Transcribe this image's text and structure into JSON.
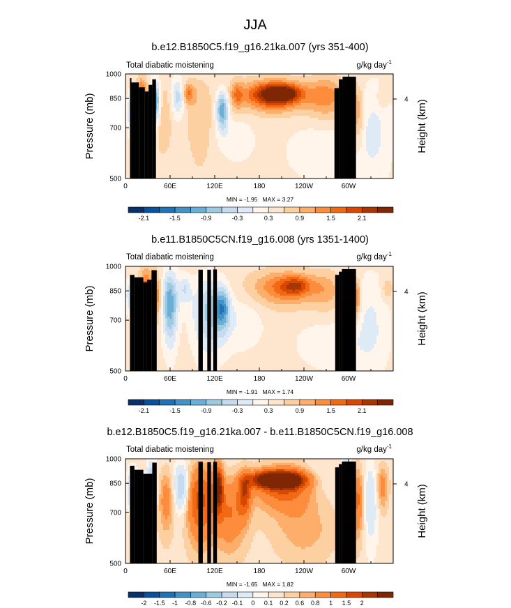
{
  "figure": {
    "title": "JJA",
    "colors": {
      "palette": [
        "#08306b",
        "#08519c",
        "#2171b5",
        "#4292c6",
        "#6baed6",
        "#9ecae1",
        "#c6dbef",
        "#deebf7",
        "#fff5eb",
        "#fee6ce",
        "#fdd0a2",
        "#fdae6b",
        "#fd8d3c",
        "#f16913",
        "#d94801",
        "#a63603",
        "#7f2704"
      ],
      "topography": "#000000"
    }
  },
  "chart_data": [
    {
      "type": "heatmap",
      "title": "b.e12.B1850C5.f19_g16.21ka.007 (yrs 351-400)",
      "left_string": "Total diabatic moistening",
      "units_base": "g/kg day",
      "units_exp": "-1",
      "ylabel": "Pressure (mb)",
      "ylabel_right": "Height (km)",
      "yticks": [
        "500",
        "700",
        "850",
        "1000"
      ],
      "yticks_right": [
        "4"
      ],
      "xticks": [
        "0",
        "60E",
        "120E",
        "180",
        "120W",
        "60W"
      ],
      "xlim": [
        0,
        360
      ],
      "ylim": [
        1000,
        500
      ],
      "min_label": "MIN = -1.95",
      "max_label": "MAX = 3.27",
      "min": -1.95,
      "max": 3.27,
      "levels": [
        -2.4,
        -2.1,
        -1.8,
        -1.5,
        -1.2,
        -0.9,
        -0.6,
        -0.3,
        0,
        0.3,
        0.6,
        0.9,
        1.2,
        1.5,
        1.8,
        2.1
      ],
      "colorbar_labels": [
        "-2.1",
        "-1.5",
        "-0.9",
        "-0.3",
        "0.3",
        "0.9",
        "1.5",
        "2.1"
      ],
      "background": 0.15,
      "blobs": [
        {
          "lon": 10,
          "p": 780,
          "rx": 7,
          "rp": 110,
          "v": -1.1
        },
        {
          "lon": 22,
          "p": 880,
          "rx": 7,
          "rp": 90,
          "v": 1.2
        },
        {
          "lon": 40,
          "p": 830,
          "rx": 7,
          "rp": 120,
          "v": -1.8
        },
        {
          "lon": 50,
          "p": 760,
          "rx": 12,
          "rp": 160,
          "v": 0.5
        },
        {
          "lon": 70,
          "p": 860,
          "rx": 9,
          "rp": 110,
          "v": -0.9
        },
        {
          "lon": 85,
          "p": 880,
          "rx": 8,
          "rp": 60,
          "v": 1.0
        },
        {
          "lon": 100,
          "p": 750,
          "rx": 16,
          "rp": 200,
          "v": 0.45
        },
        {
          "lon": 130,
          "p": 790,
          "rx": 8,
          "rp": 100,
          "v": -1.6
        },
        {
          "lon": 150,
          "p": 870,
          "rx": 8,
          "rp": 80,
          "v": 0.8
        },
        {
          "lon": 150,
          "p": 650,
          "rx": 25,
          "rp": 100,
          "v": -0.35
        },
        {
          "lon": 200,
          "p": 870,
          "rx": 40,
          "rp": 80,
          "v": 2.1
        },
        {
          "lon": 210,
          "p": 880,
          "rx": 22,
          "rp": 45,
          "v": 1.2
        },
        {
          "lon": 270,
          "p": 860,
          "rx": 25,
          "rp": 110,
          "v": 0.9
        },
        {
          "lon": 265,
          "p": 600,
          "rx": 50,
          "rp": 120,
          "v": -0.4
        },
        {
          "lon": 297,
          "p": 800,
          "rx": 5,
          "rp": 120,
          "v": -1.9
        },
        {
          "lon": 307,
          "p": 780,
          "rx": 5,
          "rp": 140,
          "v": 0.9
        },
        {
          "lon": 315,
          "p": 760,
          "rx": 5,
          "rp": 150,
          "v": 0.6
        },
        {
          "lon": 335,
          "p": 700,
          "rx": 24,
          "rp": 250,
          "v": -0.5
        },
        {
          "lon": 345,
          "p": 850,
          "rx": 7,
          "rp": 60,
          "v": 0.4
        }
      ],
      "topography": [
        [
          6,
          8,
          972
        ],
        [
          8,
          18,
          945
        ],
        [
          18,
          26,
          915
        ],
        [
          26,
          31,
          890
        ],
        [
          31,
          36,
          930
        ],
        [
          36,
          41,
          965
        ],
        [
          281,
          287,
          910
        ],
        [
          287,
          292,
          965
        ],
        [
          292,
          310,
          982
        ]
      ]
    },
    {
      "type": "heatmap",
      "title": "b.e11.B1850C5CN.f19_g16.008 (yrs 1351-1400)",
      "left_string": "Total diabatic moistening",
      "units_base": "g/kg day",
      "units_exp": "-1",
      "ylabel": "Pressure (mb)",
      "ylabel_right": "Height (km)",
      "yticks": [
        "500",
        "700",
        "850",
        "1000"
      ],
      "yticks_right": [
        "4"
      ],
      "xticks": [
        "0",
        "60E",
        "120E",
        "180",
        "120W",
        "60W"
      ],
      "xlim": [
        0,
        360
      ],
      "ylim": [
        1000,
        500
      ],
      "min_label": "MIN = -1.91",
      "max_label": "MAX = 1.74",
      "min": -1.91,
      "max": 1.74,
      "levels": [
        -2.4,
        -2.1,
        -1.8,
        -1.5,
        -1.2,
        -0.9,
        -0.6,
        -0.3,
        0,
        0.3,
        0.6,
        0.9,
        1.2,
        1.5,
        1.8,
        2.1
      ],
      "colorbar_labels": [
        "-2.1",
        "-1.5",
        "-0.9",
        "-0.3",
        "0.3",
        "0.9",
        "1.5",
        "2.1"
      ],
      "background": 0.15,
      "blobs": [
        {
          "lon": 8,
          "p": 820,
          "rx": 8,
          "rp": 90,
          "v": -0.9
        },
        {
          "lon": 28,
          "p": 840,
          "rx": 9,
          "rp": 140,
          "v": 1.3
        },
        {
          "lon": 42,
          "p": 820,
          "rx": 6,
          "rp": 120,
          "v": 0.9
        },
        {
          "lon": 60,
          "p": 780,
          "rx": 10,
          "rp": 180,
          "v": -1.6
        },
        {
          "lon": 80,
          "p": 860,
          "rx": 8,
          "rp": 80,
          "v": -0.7
        },
        {
          "lon": 112,
          "p": 740,
          "rx": 22,
          "rp": 180,
          "v": -1.1
        },
        {
          "lon": 130,
          "p": 760,
          "rx": 10,
          "rp": 100,
          "v": -1.3
        },
        {
          "lon": 155,
          "p": 690,
          "rx": 30,
          "rp": 120,
          "v": -0.4
        },
        {
          "lon": 215,
          "p": 870,
          "rx": 42,
          "rp": 95,
          "v": 1.2
        },
        {
          "lon": 230,
          "p": 880,
          "rx": 18,
          "rp": 50,
          "v": 0.8
        },
        {
          "lon": 270,
          "p": 850,
          "rx": 20,
          "rp": 110,
          "v": 0.5
        },
        {
          "lon": 280,
          "p": 600,
          "rx": 55,
          "rp": 110,
          "v": -0.35
        },
        {
          "lon": 296,
          "p": 800,
          "rx": 5,
          "rp": 120,
          "v": -1.7
        },
        {
          "lon": 305,
          "p": 800,
          "rx": 5,
          "rp": 120,
          "v": 1.1
        },
        {
          "lon": 312,
          "p": 810,
          "rx": 5,
          "rp": 100,
          "v": 0.9
        },
        {
          "lon": 330,
          "p": 720,
          "rx": 25,
          "rp": 240,
          "v": -0.45
        },
        {
          "lon": 352,
          "p": 860,
          "rx": 8,
          "rp": 60,
          "v": 0.5
        }
      ],
      "topography": [
        [
          6,
          12,
          945
        ],
        [
          12,
          24,
          930
        ],
        [
          24,
          29,
          900
        ],
        [
          29,
          35,
          915
        ],
        [
          35,
          42,
          975
        ],
        [
          98,
          104,
          978
        ],
        [
          110,
          115,
          978
        ],
        [
          118,
          123,
          980
        ],
        [
          282,
          287,
          945
        ],
        [
          287,
          291,
          965
        ],
        [
          291,
          310,
          982
        ]
      ]
    },
    {
      "type": "heatmap",
      "title": "b.e12.B1850C5.f19_g16.21ka.007 - b.e11.B1850C5CN.f19_g16.008",
      "left_string": "Total diabatic moistening",
      "units_base": "g/kg day",
      "units_exp": "-1",
      "ylabel": "Pressure (mb)",
      "ylabel_right": "Height (km)",
      "yticks": [
        "500",
        "700",
        "850",
        "1000"
      ],
      "yticks_right": [
        "4"
      ],
      "xticks": [
        "0",
        "60E",
        "120E",
        "180",
        "120W",
        "60W"
      ],
      "xlim": [
        0,
        360
      ],
      "ylim": [
        1000,
        500
      ],
      "min_label": "MIN = -1.65",
      "max_label": "MAX = 1.82",
      "min": -1.65,
      "max": 1.82,
      "levels": [
        -2.5,
        -2,
        -1.5,
        -1,
        -0.8,
        -0.6,
        -0.4,
        -0.2,
        -0.1,
        0,
        0.1,
        0.2,
        0.4,
        0.6,
        0.8,
        1,
        1.5
      ],
      "colorbar_labels": [
        "-2",
        "-1.5",
        "-1",
        "-0.8",
        "-0.6",
        "-0.2",
        "-0.1",
        "0",
        "0.1",
        "0.2",
        "0.6",
        "0.8",
        "1",
        "1.5",
        "2"
      ],
      "background": -0.05,
      "blobs": [
        {
          "lon": 10,
          "p": 800,
          "rx": 8,
          "rp": 120,
          "v": -0.5
        },
        {
          "lon": 20,
          "p": 700,
          "rx": 15,
          "rp": 160,
          "v": 0.25
        },
        {
          "lon": 35,
          "p": 830,
          "rx": 6,
          "rp": 120,
          "v": -0.9
        },
        {
          "lon": 55,
          "p": 760,
          "rx": 10,
          "rp": 150,
          "v": 0.35
        },
        {
          "lon": 75,
          "p": 830,
          "rx": 10,
          "rp": 120,
          "v": -0.6
        },
        {
          "lon": 100,
          "p": 760,
          "rx": 18,
          "rp": 180,
          "v": 0.7
        },
        {
          "lon": 125,
          "p": 830,
          "rx": 6,
          "rp": 120,
          "v": 1.05
        },
        {
          "lon": 140,
          "p": 700,
          "rx": 22,
          "rp": 160,
          "v": 0.45
        },
        {
          "lon": 160,
          "p": 800,
          "rx": 8,
          "rp": 110,
          "v": 0.65
        },
        {
          "lon": 205,
          "p": 870,
          "rx": 32,
          "rp": 45,
          "v": 1.8
        },
        {
          "lon": 215,
          "p": 830,
          "rx": 40,
          "rp": 120,
          "v": 0.6
        },
        {
          "lon": 260,
          "p": 880,
          "rx": 22,
          "rp": 100,
          "v": -0.15
        },
        {
          "lon": 240,
          "p": 620,
          "rx": 40,
          "rp": 120,
          "v": 0.2
        },
        {
          "lon": 298,
          "p": 820,
          "rx": 5,
          "rp": 150,
          "v": -1.2
        },
        {
          "lon": 312,
          "p": 760,
          "rx": 8,
          "rp": 160,
          "v": 0.5
        },
        {
          "lon": 330,
          "p": 760,
          "rx": 10,
          "rp": 200,
          "v": -0.3
        },
        {
          "lon": 345,
          "p": 830,
          "rx": 8,
          "rp": 120,
          "v": 0.35
        }
      ],
      "topography": [
        [
          6,
          12,
          955
        ],
        [
          12,
          24,
          930
        ],
        [
          24,
          30,
          905
        ],
        [
          30,
          36,
          905
        ],
        [
          36,
          42,
          975
        ],
        [
          98,
          104,
          980
        ],
        [
          110,
          115,
          978
        ],
        [
          118,
          123,
          980
        ],
        [
          282,
          287,
          945
        ],
        [
          287,
          291,
          965
        ],
        [
          291,
          310,
          982
        ]
      ]
    }
  ]
}
